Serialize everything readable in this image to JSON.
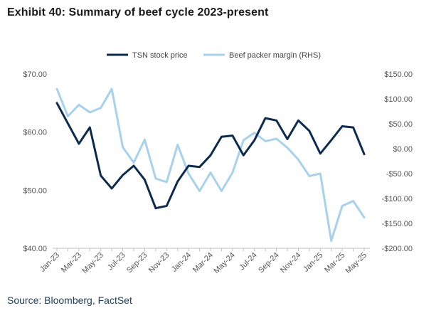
{
  "title": "Exhibit 40: Summary of beef cycle 2023-present",
  "source": "Source: Bloomberg, FactSet",
  "colors": {
    "tsn": "#0d2b4e",
    "margin": "#a8d2ec"
  },
  "chart_data": {
    "type": "line",
    "x": [
      "Jan-23",
      "Feb-23",
      "Mar-23",
      "Apr-23",
      "May-23",
      "Jun-23",
      "Jul-23",
      "Aug-23",
      "Sep-23",
      "Oct-23",
      "Nov-23",
      "Dec-23",
      "Jan-24",
      "Feb-24",
      "Mar-24",
      "Apr-24",
      "May-24",
      "Jun-24",
      "Jul-24",
      "Aug-24",
      "Sep-24",
      "Oct-24",
      "Nov-24",
      "Dec-24",
      "Jan-25",
      "Feb-25",
      "Mar-25",
      "Apr-25",
      "May-25"
    ],
    "x_tick_labels": [
      "Jan-23",
      "Mar-23",
      "May-23",
      "Jul-23",
      "Sep-23",
      "Nov-23",
      "Jan-24",
      "Mar-24",
      "May-24",
      "Jul-24",
      "Sep-24",
      "Nov-24",
      "Jan-25",
      "Mar-25",
      "May-25"
    ],
    "series": [
      {
        "name": "TSN stock price",
        "axis": "left",
        "values": [
          65.0,
          61.5,
          58.0,
          60.8,
          52.5,
          50.3,
          52.6,
          54.2,
          51.8,
          46.9,
          47.3,
          51.5,
          54.2,
          54.0,
          56.0,
          59.2,
          59.4,
          56.0,
          58.6,
          62.4,
          62.0,
          58.8,
          62.0,
          60.2,
          56.3,
          58.6,
          61.0,
          60.8,
          56.2
        ]
      },
      {
        "name": "Beef packer margin (RHS)",
        "axis": "right",
        "values": [
          120,
          65,
          88,
          73,
          82,
          120,
          3,
          -28,
          18,
          -60,
          -67,
          8,
          -50,
          -85,
          -48,
          -85,
          -48,
          17,
          32,
          15,
          20,
          2,
          -22,
          -55,
          -50,
          -185,
          -115,
          -105,
          -138
        ]
      }
    ],
    "yleft": {
      "lim": [
        40,
        70
      ],
      "ticks": [
        40,
        50,
        60,
        70
      ],
      "tick_labels": [
        "$40.00",
        "$50.00",
        "$60.00",
        "$70.00"
      ]
    },
    "yright": {
      "lim": [
        -200,
        150
      ],
      "ticks": [
        -200,
        -150,
        -100,
        -50,
        0,
        50,
        100,
        150
      ],
      "tick_labels": [
        "-$200.00",
        "-$150.00",
        "-$100.00",
        "-$50.00",
        "$0.00",
        "$50.00",
        "$100.00",
        "$150.00"
      ]
    },
    "legend": "top-center",
    "grid": false
  }
}
